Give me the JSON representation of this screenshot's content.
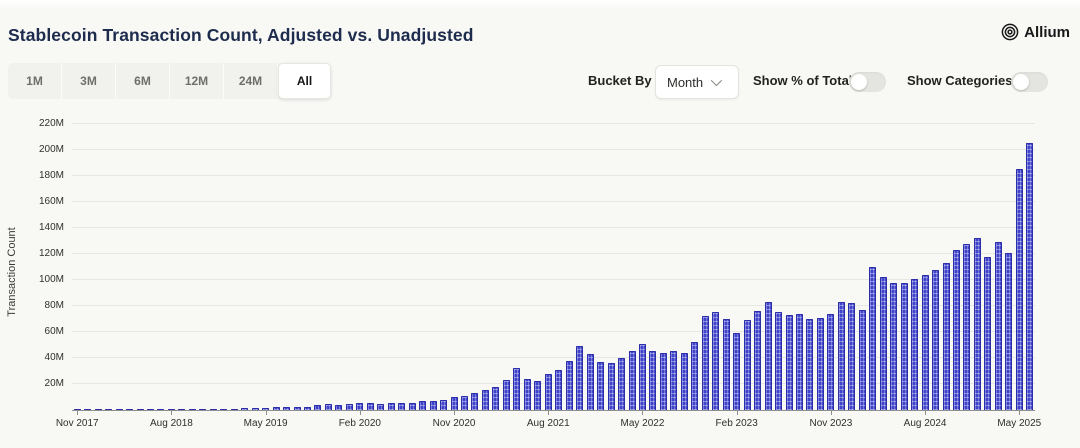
{
  "header": {
    "title": "Stablecoin Transaction Count, Adjusted vs. Unadjusted",
    "brand": "Allium"
  },
  "controls": {
    "range_buttons": [
      "1M",
      "3M",
      "6M",
      "12M",
      "24M",
      "All"
    ],
    "selected_range": "All",
    "bucket_by_label": "Bucket By",
    "bucket_by_value": "Month",
    "toggle_percent_label": "Show % of Total",
    "toggle_percent_on": false,
    "toggle_categories_label": "Show Categories",
    "toggle_categories_on": false
  },
  "chart_data": {
    "type": "bar",
    "title": "Stablecoin Transaction Count, Adjusted vs. Unadjusted",
    "xlabel": "",
    "ylabel": "Transaction Count",
    "unit": "millions of transactions",
    "ylim_millions": [
      0,
      220
    ],
    "y_tick_step_millions": 20,
    "y_tick_labels": [
      "20M",
      "40M",
      "60M",
      "80M",
      "100M",
      "120M",
      "140M",
      "160M",
      "180M",
      "200M",
      "220M"
    ],
    "x_tick_labels": [
      "Nov 2017",
      "Aug 2018",
      "May 2019",
      "Feb 2020",
      "Nov 2020",
      "Aug 2021",
      "May 2022",
      "Feb 2023",
      "Nov 2023",
      "Aug 2024",
      "May 2025"
    ],
    "x_tick_every_n_months": 9,
    "grid": true,
    "legend": "none",
    "bar_color": "#4044ca",
    "categories": [
      "Nov 2017",
      "Dec 2017",
      "Jan 2018",
      "Feb 2018",
      "Mar 2018",
      "Apr 2018",
      "May 2018",
      "Jun 2018",
      "Jul 2018",
      "Aug 2018",
      "Sep 2018",
      "Oct 2018",
      "Nov 2018",
      "Dec 2018",
      "Jan 2019",
      "Feb 2019",
      "Mar 2019",
      "Apr 2019",
      "May 2019",
      "Jun 2019",
      "Jul 2019",
      "Aug 2019",
      "Sep 2019",
      "Oct 2019",
      "Nov 2019",
      "Dec 2019",
      "Jan 2020",
      "Feb 2020",
      "Mar 2020",
      "Apr 2020",
      "May 2020",
      "Jun 2020",
      "Jul 2020",
      "Aug 2020",
      "Sep 2020",
      "Oct 2020",
      "Nov 2020",
      "Dec 2020",
      "Jan 2021",
      "Feb 2021",
      "Mar 2021",
      "Apr 2021",
      "May 2021",
      "Jun 2021",
      "Jul 2021",
      "Aug 2021",
      "Sep 2021",
      "Oct 2021",
      "Nov 2021",
      "Dec 2021",
      "Jan 2022",
      "Feb 2022",
      "Mar 2022",
      "Apr 2022",
      "May 2022",
      "Jun 2022",
      "Jul 2022",
      "Aug 2022",
      "Sep 2022",
      "Oct 2022",
      "Nov 2022",
      "Dec 2022",
      "Jan 2023",
      "Feb 2023",
      "Mar 2023",
      "Apr 2023",
      "May 2023",
      "Jun 2023",
      "Jul 2023",
      "Aug 2023",
      "Sep 2023",
      "Oct 2023",
      "Nov 2023",
      "Dec 2023",
      "Jan 2024",
      "Feb 2024",
      "Mar 2024",
      "Apr 2024",
      "May 2024",
      "Jun 2024",
      "Jul 2024",
      "Aug 2024",
      "Sep 2024",
      "Oct 2024",
      "Nov 2024",
      "Dec 2024",
      "Jan 2025",
      "Feb 2025",
      "Mar 2025",
      "Apr 2025",
      "May 2025",
      "Jun 2025"
    ],
    "values_millions": [
      0.3,
      0.3,
      0.4,
      0.4,
      0.5,
      0.5,
      0.5,
      0.6,
      0.6,
      0.7,
      0.7,
      0.8,
      0.9,
      1.0,
      1.0,
      1.1,
      1.2,
      1.3,
      1.6,
      2.0,
      2.2,
      2.5,
      2.6,
      3.6,
      4.5,
      4.2,
      4.6,
      5.6,
      5.0,
      4.6,
      5.0,
      5.2,
      5.6,
      6.6,
      7.2,
      7.8,
      10.0,
      10.8,
      13,
      15,
      18,
      23,
      32,
      24,
      22,
      28,
      31,
      38,
      49,
      43,
      37,
      36,
      40,
      45,
      51,
      45,
      44,
      45,
      44,
      52,
      72,
      75,
      70,
      59,
      69,
      76,
      83,
      75,
      73,
      74,
      70,
      71,
      74,
      83,
      82,
      77,
      110,
      102,
      98,
      98,
      101,
      104,
      108,
      113,
      123,
      128,
      132,
      118,
      129,
      121,
      185,
      205
    ]
  }
}
